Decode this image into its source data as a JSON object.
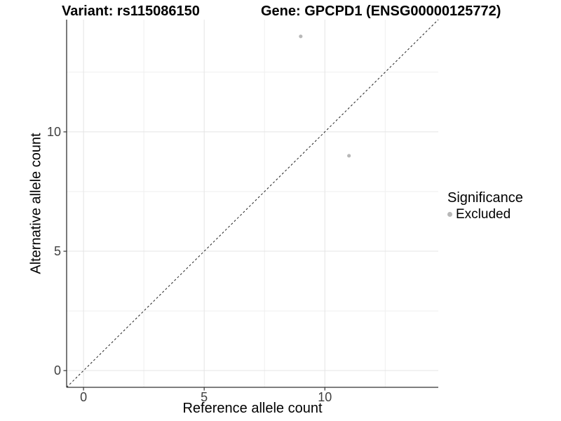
{
  "chart_data": {
    "type": "scatter",
    "title_left": "Variant: rs115086150",
    "title_right": "Gene: GPCPD1 (ENSG00000125772)",
    "xlabel": "Reference allele count",
    "ylabel": "Alternative allele count",
    "xlim": [
      -0.7,
      14.7
    ],
    "ylim": [
      -0.7,
      14.7
    ],
    "x_ticks": [
      0,
      5,
      10
    ],
    "y_ticks": [
      0,
      5,
      10
    ],
    "x_minor": [
      2.5,
      7.5,
      12.5
    ],
    "y_minor": [
      2.5,
      7.5,
      12.5
    ],
    "grid": "on",
    "points": [
      {
        "x": 9,
        "y": 14,
        "series": "Excluded"
      },
      {
        "x": 11,
        "y": 9,
        "series": "Excluded"
      }
    ],
    "point_color": "#b8b8b8",
    "abline": {
      "slope": 1,
      "intercept": 0,
      "style": "dashed",
      "color": "#222222"
    },
    "legend": {
      "position": "right",
      "title": "Significance",
      "items": [
        {
          "label": "Excluded",
          "color": "#b8b8b8"
        }
      ]
    }
  }
}
